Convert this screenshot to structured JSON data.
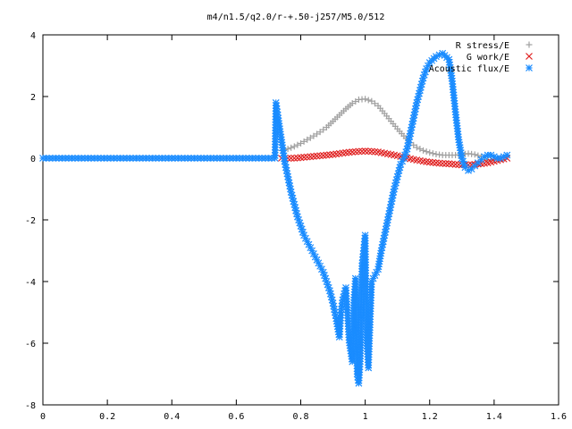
{
  "chart_data": {
    "type": "scatter",
    "title": "m4/n1.5/q2.0/r-+.50-j257/M5.0/512",
    "xlabel": "",
    "ylabel": "",
    "xlim": [
      0,
      1.6
    ],
    "ylim": [
      -8,
      4
    ],
    "xticks": [
      0,
      0.2,
      0.4,
      0.6,
      0.8,
      1,
      1.2,
      1.4,
      1.6
    ],
    "xtick_labels": [
      "0",
      "0.2",
      "0.4",
      "0.6",
      "0.8",
      "1",
      "1.2",
      "1.4",
      "1.6"
    ],
    "yticks": [
      -8,
      -6,
      -4,
      -2,
      0,
      2,
      4
    ],
    "ytick_labels": [
      "-8",
      "-6",
      "-4",
      "-2",
      "0",
      "2",
      "4"
    ],
    "grid": false,
    "legend_position": "top-right",
    "series": [
      {
        "name": "R stress/E",
        "marker": "plus",
        "color": "#a0a0a0",
        "x": [
          0.74,
          0.76,
          0.78,
          0.8,
          0.82,
          0.84,
          0.86,
          0.88,
          0.9,
          0.92,
          0.94,
          0.96,
          0.98,
          1.0,
          1.02,
          1.04,
          1.06,
          1.08,
          1.1,
          1.12,
          1.14,
          1.16,
          1.18,
          1.2,
          1.22,
          1.24,
          1.26,
          1.28,
          1.3,
          1.32,
          1.34,
          1.36,
          1.38,
          1.4,
          1.42,
          1.44
        ],
        "y": [
          0.25,
          0.3,
          0.38,
          0.48,
          0.6,
          0.72,
          0.85,
          1.0,
          1.2,
          1.4,
          1.6,
          1.78,
          1.9,
          1.92,
          1.85,
          1.7,
          1.45,
          1.2,
          0.95,
          0.72,
          0.5,
          0.35,
          0.25,
          0.18,
          0.13,
          0.1,
          0.1,
          0.1,
          0.12,
          0.15,
          0.12,
          0.05,
          -0.05,
          -0.05,
          0.0,
          0.05
        ]
      },
      {
        "name": "G work/E",
        "marker": "cross",
        "color": "#e02020",
        "x": [
          0.74,
          0.76,
          0.78,
          0.8,
          0.82,
          0.84,
          0.86,
          0.88,
          0.9,
          0.92,
          0.94,
          0.96,
          0.98,
          1.0,
          1.02,
          1.04,
          1.06,
          1.08,
          1.1,
          1.12,
          1.14,
          1.16,
          1.18,
          1.2,
          1.22,
          1.24,
          1.26,
          1.28,
          1.3,
          1.32,
          1.34,
          1.36,
          1.38,
          1.4,
          1.42,
          1.44
        ],
        "y": [
          0.0,
          0.0,
          0.0,
          0.02,
          0.04,
          0.06,
          0.08,
          0.1,
          0.12,
          0.15,
          0.18,
          0.2,
          0.22,
          0.23,
          0.22,
          0.2,
          0.16,
          0.12,
          0.08,
          0.03,
          -0.02,
          -0.06,
          -0.1,
          -0.13,
          -0.15,
          -0.17,
          -0.18,
          -0.2,
          -0.22,
          -0.22,
          -0.2,
          -0.18,
          -0.15,
          -0.1,
          -0.05,
          0.0
        ]
      },
      {
        "name": "Acoustic flux/E",
        "marker": "star",
        "color": "#1a8cff",
        "x": [
          0.0,
          0.03,
          0.06,
          0.09,
          0.12,
          0.15,
          0.18,
          0.21,
          0.24,
          0.27,
          0.3,
          0.33,
          0.36,
          0.39,
          0.42,
          0.45,
          0.48,
          0.51,
          0.54,
          0.57,
          0.6,
          0.63,
          0.66,
          0.69,
          0.72,
          0.723,
          0.73,
          0.74,
          0.75,
          0.76,
          0.77,
          0.78,
          0.79,
          0.8,
          0.81,
          0.82,
          0.83,
          0.84,
          0.85,
          0.86,
          0.87,
          0.88,
          0.89,
          0.9,
          0.91,
          0.92,
          0.925,
          0.93,
          0.94,
          0.95,
          0.96,
          0.965,
          0.97,
          0.975,
          0.98,
          0.985,
          0.99,
          0.995,
          1.0,
          1.005,
          1.01,
          1.02,
          1.03,
          1.04,
          1.05,
          1.06,
          1.07,
          1.08,
          1.09,
          1.1,
          1.11,
          1.12,
          1.13,
          1.14,
          1.15,
          1.16,
          1.17,
          1.18,
          1.19,
          1.2,
          1.22,
          1.24,
          1.26,
          1.27,
          1.28,
          1.29,
          1.3,
          1.31,
          1.32,
          1.33,
          1.34,
          1.35,
          1.36,
          1.37,
          1.38,
          1.39,
          1.4,
          1.41,
          1.42,
          1.43,
          1.44
        ],
        "y": [
          0,
          0,
          0,
          0,
          0,
          0,
          0,
          0,
          0,
          0,
          0,
          0,
          0,
          0,
          0,
          0,
          0,
          0,
          0,
          0,
          0,
          0,
          0,
          0,
          0,
          1.8,
          1.3,
          0.6,
          -0.1,
          -0.6,
          -1.1,
          -1.5,
          -1.9,
          -2.2,
          -2.5,
          -2.7,
          -2.9,
          -3.1,
          -3.3,
          -3.5,
          -3.7,
          -4.0,
          -4.3,
          -4.7,
          -5.2,
          -5.8,
          -5.0,
          -4.6,
          -4.2,
          -5.9,
          -6.6,
          -4.6,
          -3.9,
          -7.0,
          -7.3,
          -6.5,
          -3.5,
          -3.0,
          -2.5,
          -6.0,
          -6.8,
          -4.0,
          -3.8,
          -3.6,
          -3.0,
          -2.5,
          -2.0,
          -1.5,
          -1.0,
          -0.6,
          -0.2,
          0.0,
          0.3,
          0.8,
          1.3,
          1.8,
          2.2,
          2.6,
          2.9,
          3.1,
          3.3,
          3.4,
          3.2,
          2.5,
          1.5,
          0.6,
          0.0,
          -0.3,
          -0.4,
          -0.35,
          -0.25,
          -0.15,
          -0.05,
          0.05,
          0.1,
          0.1,
          0.05,
          0.0,
          0.0,
          0.05,
          0.1
        ]
      }
    ]
  }
}
